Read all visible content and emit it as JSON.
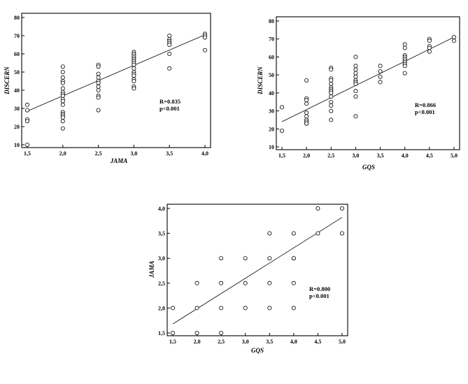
{
  "chart_data": [
    {
      "type": "scatter",
      "xlabel": "JAMA",
      "ylabel": "DISCERN",
      "xlim": [
        1.5,
        4.0
      ],
      "ylim": [
        8,
        80
      ],
      "xticks": [
        "1,5",
        "2,0",
        "2,5",
        "3,0",
        "3,5",
        "4,0"
      ],
      "yticks": [
        "10",
        "20",
        "30",
        "40",
        "50",
        "60",
        "70",
        "80"
      ],
      "annotations": [
        "R=0.835",
        "p<0.001"
      ],
      "fit_line": {
        "x": [
          1.5,
          4.0
        ],
        "y": [
          28.5,
          70.5
        ]
      },
      "series": [
        {
          "x": [
            1.5,
            1.5,
            1.5,
            1.5,
            1.5,
            2.0,
            2.0,
            2.0,
            2.0,
            2.0,
            2.0,
            2.0,
            2.0,
            2.0,
            2.0,
            2.0,
            2.0,
            2.0,
            2.0,
            2.0,
            2.0,
            2.0,
            2.0,
            2.5,
            2.5,
            2.5,
            2.5,
            2.5,
            2.5,
            2.5,
            2.5,
            2.5,
            2.5,
            2.5,
            3.0,
            3.0,
            3.0,
            3.0,
            3.0,
            3.0,
            3.0,
            3.0,
            3.0,
            3.0,
            3.0,
            3.0,
            3.0,
            3.0,
            3.0,
            3.0,
            3.5,
            3.5,
            3.5,
            3.5,
            3.5,
            3.5,
            3.5,
            4.0,
            4.0,
            4.0,
            4.0
          ],
          "y": [
            32,
            29,
            24,
            23,
            10,
            53,
            50,
            47,
            45,
            44,
            41,
            39,
            38,
            37,
            35,
            34,
            32,
            28,
            27,
            26,
            25,
            23,
            19,
            54,
            53,
            49,
            47,
            45,
            44,
            42,
            40,
            37,
            36,
            29,
            61,
            60,
            59,
            58,
            57,
            56,
            55,
            54,
            52,
            50,
            49,
            48,
            46,
            45,
            42,
            41,
            70,
            68,
            67,
            66,
            65,
            60,
            52,
            71,
            70,
            69,
            62
          ]
        }
      ]
    },
    {
      "type": "scatter",
      "xlabel": "GQS",
      "ylabel": "DISCERN",
      "xlim": [
        1.5,
        5.0
      ],
      "ylim": [
        8,
        80
      ],
      "xticks": [
        "1,5",
        "2,0",
        "2,5",
        "3,0",
        "3,5",
        "4,0",
        "4,5",
        "5,0"
      ],
      "yticks": [
        "10",
        "20",
        "30",
        "40",
        "50",
        "60",
        "70",
        "80"
      ],
      "annotations": [
        "R=0.866",
        "p<0.001"
      ],
      "fit_line": {
        "x": [
          1.5,
          5.0
        ],
        "y": [
          24,
          71
        ]
      },
      "series": [
        {
          "x": [
            1.5,
            1.5,
            2.0,
            2.0,
            2.0,
            2.0,
            2.0,
            2.0,
            2.0,
            2.0,
            2.0,
            2.0,
            2.5,
            2.5,
            2.5,
            2.5,
            2.5,
            2.5,
            2.5,
            2.5,
            2.5,
            2.5,
            2.5,
            2.5,
            2.5,
            2.5,
            3.0,
            3.0,
            3.0,
            3.0,
            3.0,
            3.0,
            3.0,
            3.0,
            3.0,
            3.0,
            3.0,
            3.5,
            3.5,
            3.5,
            3.5,
            4.0,
            4.0,
            4.0,
            4.0,
            4.0,
            4.0,
            4.0,
            4.0,
            4.0,
            4.0,
            4.5,
            4.5,
            4.5,
            4.5,
            4.5,
            5.0,
            5.0
          ],
          "y": [
            32,
            19,
            47,
            37,
            36,
            34,
            29,
            27,
            25,
            24,
            23,
            23,
            54,
            53,
            48,
            47,
            45,
            43,
            42,
            41,
            40,
            38,
            35,
            33,
            30,
            25,
            60,
            55,
            53,
            51,
            49,
            47,
            46,
            45,
            41,
            38,
            27,
            55,
            52,
            49,
            46,
            67,
            65,
            61,
            60,
            59,
            58,
            57,
            56,
            55,
            51,
            70,
            69,
            66,
            65,
            63,
            71,
            69
          ]
        }
      ]
    },
    {
      "type": "scatter",
      "xlabel": "GQS",
      "ylabel": "JAMA",
      "xlim": [
        1.5,
        5.0
      ],
      "ylim": [
        1.5,
        4.0
      ],
      "xticks": [
        "1,5",
        "2,0",
        "2,5",
        "3,0",
        "3,5",
        "4,0",
        "4,5",
        "5,0"
      ],
      "yticks": [
        "1,5",
        "2,0",
        "2,5",
        "3,0",
        "3,5",
        "4,0"
      ],
      "annotations": [
        "R=0.800",
        "p<0.001"
      ],
      "fit_line": {
        "x": [
          1.5,
          5.0
        ],
        "y": [
          1.68,
          3.82
        ]
      },
      "series": [
        {
          "x": [
            1.5,
            1.5,
            2.0,
            2.0,
            2.0,
            2.5,
            2.5,
            2.5,
            2.5,
            3.0,
            3.0,
            3.0,
            3.5,
            3.5,
            3.5,
            3.5,
            4.0,
            4.0,
            4.0,
            4.0,
            4.0,
            4.5,
            4.5,
            5.0,
            5.0
          ],
          "y": [
            2.0,
            1.5,
            2.5,
            2.0,
            1.5,
            3.0,
            2.5,
            2.0,
            1.5,
            3.0,
            2.5,
            2.0,
            3.5,
            3.0,
            2.5,
            2.0,
            3.5,
            3.0,
            2.5,
            2.0,
            3.0,
            4.0,
            3.5,
            4.0,
            3.5
          ]
        }
      ]
    }
  ]
}
